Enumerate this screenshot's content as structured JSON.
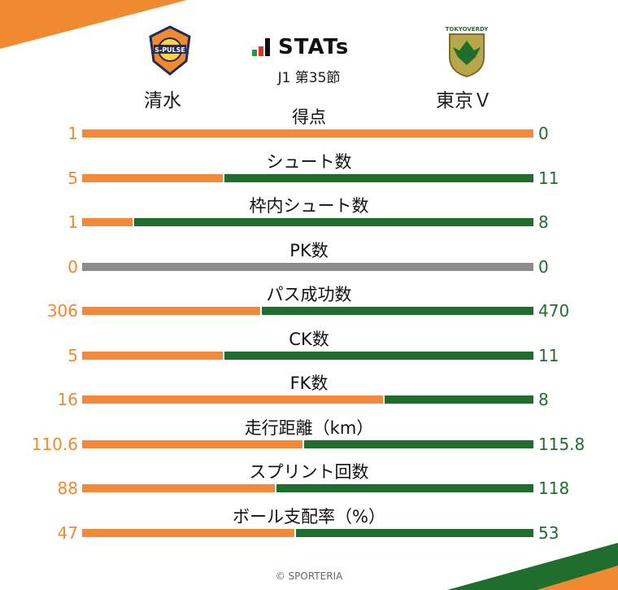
{
  "brand": {
    "name": "STATs"
  },
  "round": "J1 第35節",
  "teams": {
    "home": {
      "name": "清水",
      "logo_text": "S-PULSE",
      "color": "#f08a30"
    },
    "away": {
      "name": "東京Ｖ",
      "logo_text": "TOKYOVERDY",
      "color": "#1f6e2e"
    }
  },
  "stats": [
    {
      "label": "得点",
      "home": "1",
      "away": "0",
      "home_share": 1.0
    },
    {
      "label": "シュート数",
      "home": "5",
      "away": "11",
      "home_share": 0.3125
    },
    {
      "label": "枠内シュート数",
      "home": "1",
      "away": "8",
      "home_share": 0.111
    },
    {
      "label": "PK数",
      "home": "0",
      "away": "0",
      "home_share": null
    },
    {
      "label": "パス成功数",
      "home": "306",
      "away": "470",
      "home_share": 0.394
    },
    {
      "label": "CK数",
      "home": "5",
      "away": "11",
      "home_share": 0.3125
    },
    {
      "label": "FK数",
      "home": "16",
      "away": "8",
      "home_share": 0.667
    },
    {
      "label": "走行距離（km）",
      "home": "110.6",
      "away": "115.8",
      "home_share": 0.488
    },
    {
      "label": "スプリント回数",
      "home": "88",
      "away": "118",
      "home_share": 0.427
    },
    {
      "label": "ボール支配率（%）",
      "home": "47",
      "away": "53",
      "home_share": 0.47
    }
  ],
  "copyright": "© SPORTERIA"
}
